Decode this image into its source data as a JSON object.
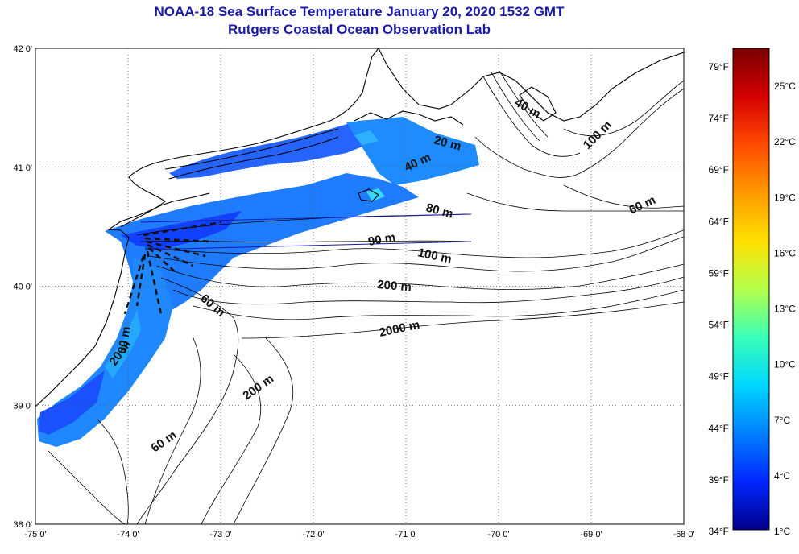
{
  "title": {
    "line1": "NOAA-18 Sea Surface Temperature January 20, 2020 1532 GMT",
    "line2": "Rutgers Coastal Ocean Observation Lab"
  },
  "map": {
    "lon_ticks": [
      "-75 0'",
      "-74 0'",
      "-73 0'",
      "-72 0'",
      "-71 0'",
      "-70 0'",
      "-69 0'",
      "-68 0'"
    ],
    "lat_ticks": [
      "42 0'",
      "41 0'",
      "40 0'",
      "39 0'",
      "38 0'"
    ],
    "lon_range": [
      -75,
      -68
    ],
    "lat_range": [
      38,
      42
    ],
    "grid": "dotted",
    "contour_labels": [
      "20 m",
      "40 m",
      "60 m",
      "80 m",
      "90 m",
      "100 m",
      "200 m",
      "2000 m",
      "40 m",
      "100 m",
      "60 m",
      "20 m",
      "60 m",
      "200 m",
      "60 m"
    ]
  },
  "colorbar": {
    "fahrenheit": [
      "79°F",
      "74°F",
      "69°F",
      "64°F",
      "59°F",
      "54°F",
      "49°F",
      "44°F",
      "39°F",
      "34°F"
    ],
    "celsius": [
      "25°C",
      "22°C",
      "19°C",
      "16°C",
      "13°C",
      "10°C",
      "7°C",
      "4°C",
      "1°C"
    ],
    "colors": [
      "#7a0000",
      "#d40000",
      "#ff4a00",
      "#ff9a00",
      "#ffe000",
      "#b4ff4a",
      "#3affb8",
      "#00d6ff",
      "#0080ff",
      "#0026ff",
      "#00008a"
    ]
  }
}
